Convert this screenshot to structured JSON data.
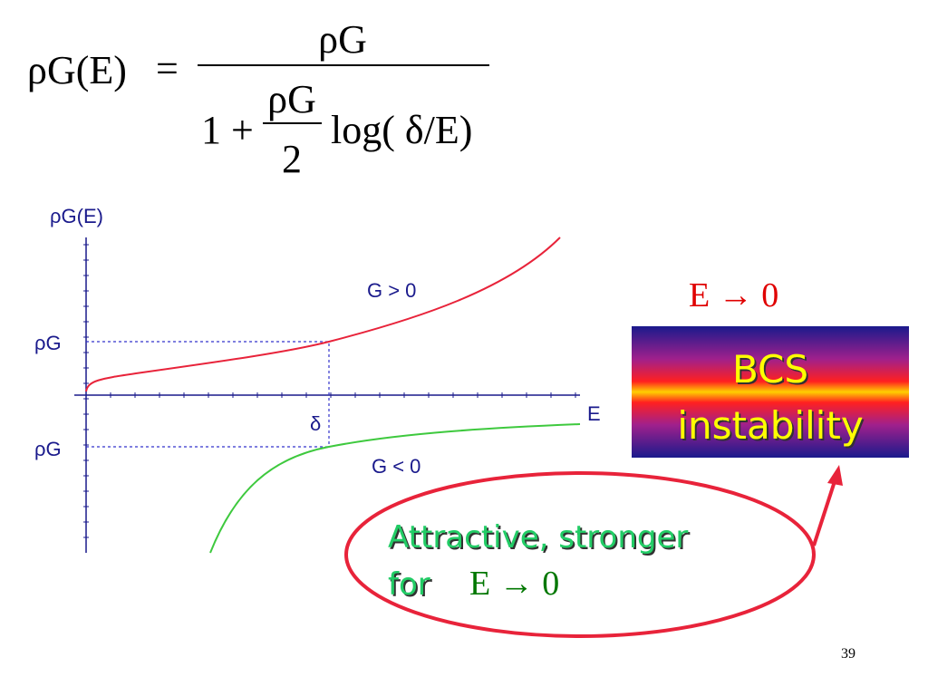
{
  "formula": {
    "lhs": "ρG(E)",
    "equals": "=",
    "numerator": "ρG",
    "denominator_prefix": "1 +",
    "inner_numerator": "ρG",
    "inner_denominator": "2",
    "log_term": "log( δ/E)"
  },
  "plot": {
    "y_label": "ρG(E)",
    "rho_g_upper": "ρG",
    "rho_g_lower": "ρG",
    "delta": "δ",
    "x_label": "E",
    "curve_positive": "G > 0",
    "curve_negative": "G < 0"
  },
  "callout": {
    "limit": "E → 0",
    "title_line1": "BCS",
    "title_line2": "instability"
  },
  "note": {
    "line1": "Attractive, stronger",
    "for": "for",
    "limit": "E → 0"
  },
  "page_number": "39"
}
